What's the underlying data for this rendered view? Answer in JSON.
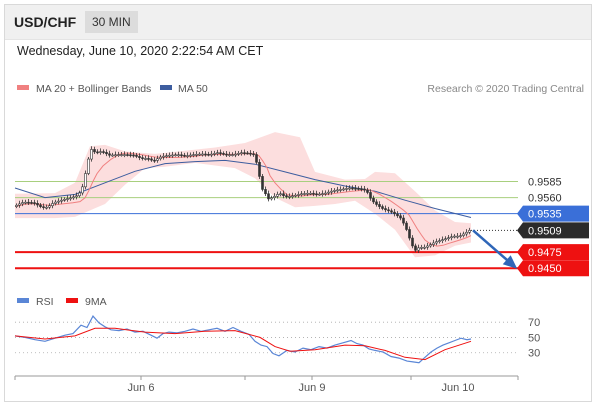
{
  "header": {
    "symbol": "USD/CHF",
    "timeframe": "30 MIN",
    "datetime": "Wednesday, June 10, 2020 2:22:54 AM CET"
  },
  "legend": {
    "ma20_label": "MA 20 + Bollinger Bands",
    "ma50_label": "MA 50",
    "credit": "Research © 2020 Trading Central",
    "rsi_label": "RSI",
    "rsi_ma_label": "9MA"
  },
  "colors": {
    "ma20": "#f08080",
    "bollinger_fill": "#fcdede",
    "ma50": "#3d5d9f",
    "green_level": "#a8cf7e",
    "blue_level": "#3a6fd8",
    "red_level": "#ee1111",
    "candle": "#333333",
    "rsi": "#5a86d6",
    "rsi_ma": "#ee1111",
    "arrow": "#2f66b8"
  },
  "chart_data": [
    {
      "type": "candlestick",
      "title": "USD/CHF 30 MIN",
      "x_ticks": [
        "Jun 6",
        "Jun 9",
        "Jun 10"
      ],
      "ylim": [
        0.9427,
        0.9712
      ],
      "levels": [
        {
          "value": 0.9585,
          "label": "0.9585",
          "style": "green"
        },
        {
          "value": 0.956,
          "label": "0.9560",
          "style": "green"
        },
        {
          "value": 0.9535,
          "label": "0.9535",
          "style": "blue"
        },
        {
          "value": 0.9509,
          "label": "0.9509",
          "style": "current"
        },
        {
          "value": 0.9475,
          "label": "0.9475",
          "style": "red"
        },
        {
          "value": 0.945,
          "label": "0.9450",
          "style": "red"
        }
      ],
      "price_path": [
        [
          0,
          0.9546
        ],
        [
          10,
          0.9553
        ],
        [
          20,
          0.9552
        ],
        [
          28,
          0.9545
        ],
        [
          34,
          0.9545
        ],
        [
          40,
          0.9552
        ],
        [
          50,
          0.9557
        ],
        [
          58,
          0.956
        ],
        [
          65,
          0.9564
        ],
        [
          70,
          0.958
        ],
        [
          74,
          0.9615
        ],
        [
          78,
          0.9635
        ],
        [
          82,
          0.963
        ],
        [
          88,
          0.9632
        ],
        [
          96,
          0.9626
        ],
        [
          104,
          0.9627
        ],
        [
          112,
          0.9627
        ],
        [
          120,
          0.9626
        ],
        [
          128,
          0.9621
        ],
        [
          134,
          0.9621
        ],
        [
          140,
          0.9617
        ],
        [
          148,
          0.9624
        ],
        [
          156,
          0.9626
        ],
        [
          164,
          0.9627
        ],
        [
          172,
          0.9625
        ],
        [
          180,
          0.9627
        ],
        [
          188,
          0.9628
        ],
        [
          196,
          0.9627
        ],
        [
          204,
          0.963
        ],
        [
          212,
          0.9627
        ],
        [
          220,
          0.9627
        ],
        [
          228,
          0.963
        ],
        [
          235,
          0.9629
        ],
        [
          240,
          0.9627
        ],
        [
          244,
          0.9611
        ],
        [
          248,
          0.9575
        ],
        [
          252,
          0.9566
        ],
        [
          255,
          0.9558
        ],
        [
          260,
          0.9561
        ],
        [
          266,
          0.9567
        ],
        [
          272,
          0.9561
        ],
        [
          280,
          0.9563
        ],
        [
          288,
          0.9566
        ],
        [
          296,
          0.9567
        ],
        [
          304,
          0.9565
        ],
        [
          312,
          0.9567
        ],
        [
          320,
          0.9571
        ],
        [
          328,
          0.9573
        ],
        [
          336,
          0.9575
        ],
        [
          344,
          0.9574
        ],
        [
          350,
          0.9573
        ],
        [
          354,
          0.9568
        ],
        [
          358,
          0.9556
        ],
        [
          364,
          0.9548
        ],
        [
          370,
          0.9542
        ],
        [
          376,
          0.9539
        ],
        [
          382,
          0.9534
        ],
        [
          388,
          0.9527
        ],
        [
          394,
          0.9507
        ],
        [
          398,
          0.9487
        ],
        [
          402,
          0.9478
        ],
        [
          406,
          0.9483
        ],
        [
          410,
          0.9482
        ],
        [
          416,
          0.9486
        ],
        [
          422,
          0.9491
        ],
        [
          428,
          0.9494
        ],
        [
          434,
          0.9497
        ],
        [
          440,
          0.95
        ],
        [
          446,
          0.95
        ],
        [
          452,
          0.9505
        ],
        [
          456,
          0.9509
        ]
      ],
      "ma50_path": [
        [
          0,
          0.9575
        ],
        [
          30,
          0.956
        ],
        [
          60,
          0.9565
        ],
        [
          90,
          0.9583
        ],
        [
          120,
          0.9601
        ],
        [
          150,
          0.9613
        ],
        [
          180,
          0.9616
        ],
        [
          210,
          0.9618
        ],
        [
          240,
          0.9612
        ],
        [
          270,
          0.96
        ],
        [
          300,
          0.9588
        ],
        [
          330,
          0.9578
        ],
        [
          360,
          0.957
        ],
        [
          390,
          0.9556
        ],
        [
          420,
          0.9543
        ],
        [
          456,
          0.9529
        ]
      ],
      "bollinger": {
        "upper": [
          [
            0,
            0.9566
          ],
          [
            40,
            0.9567
          ],
          [
            60,
            0.9583
          ],
          [
            75,
            0.964
          ],
          [
            90,
            0.9642
          ],
          [
            110,
            0.9632
          ],
          [
            140,
            0.9628
          ],
          [
            170,
            0.9633
          ],
          [
            200,
            0.9638
          ],
          [
            230,
            0.9645
          ],
          [
            260,
            0.9662
          ],
          [
            285,
            0.9654
          ],
          [
            300,
            0.96
          ],
          [
            330,
            0.9588
          ],
          [
            350,
            0.9589
          ],
          [
            360,
            0.96
          ],
          [
            380,
            0.9598
          ],
          [
            400,
            0.957
          ],
          [
            420,
            0.954
          ],
          [
            440,
            0.9522
          ],
          [
            456,
            0.952
          ]
        ],
        "lower": [
          [
            456,
            0.949
          ],
          [
            440,
            0.9485
          ],
          [
            420,
            0.947
          ],
          [
            400,
            0.9467
          ],
          [
            380,
            0.951
          ],
          [
            360,
            0.9535
          ],
          [
            340,
            0.9555
          ],
          [
            320,
            0.955
          ],
          [
            300,
            0.9547
          ],
          [
            280,
            0.9545
          ],
          [
            260,
            0.956
          ],
          [
            240,
            0.959
          ],
          [
            220,
            0.9606
          ],
          [
            200,
            0.961
          ],
          [
            180,
            0.9614
          ],
          [
            150,
            0.9608
          ],
          [
            130,
            0.9606
          ],
          [
            110,
            0.958
          ],
          [
            90,
            0.955
          ],
          [
            75,
            0.954
          ],
          [
            60,
            0.953
          ],
          [
            40,
            0.9528
          ],
          [
            0,
            0.9528
          ]
        ]
      },
      "forecast_arrow": {
        "from": [
          458,
          0.9509
        ],
        "to": [
          500,
          0.9452
        ]
      }
    },
    {
      "type": "line",
      "title": "RSI",
      "ylim": [
        10,
        82
      ],
      "y_ticks": [
        70,
        50,
        30
      ],
      "series": [
        {
          "name": "RSI",
          "values": [
            [
              0,
              52
            ],
            [
              10,
              50
            ],
            [
              20,
              47
            ],
            [
              30,
              45
            ],
            [
              40,
              49
            ],
            [
              50,
              53
            ],
            [
              58,
              55
            ],
            [
              66,
              66
            ],
            [
              72,
              63
            ],
            [
              78,
              78
            ],
            [
              84,
              69
            ],
            [
              90,
              64
            ],
            [
              96,
              60
            ],
            [
              104,
              59
            ],
            [
              112,
              61
            ],
            [
              120,
              57
            ],
            [
              128,
              58
            ],
            [
              136,
              53
            ],
            [
              142,
              49
            ],
            [
              148,
              55
            ],
            [
              154,
              57
            ],
            [
              162,
              56
            ],
            [
              170,
              58
            ],
            [
              178,
              61
            ],
            [
              186,
              58
            ],
            [
              194,
              60
            ],
            [
              202,
              62
            ],
            [
              210,
              58
            ],
            [
              218,
              63
            ],
            [
              226,
              58
            ],
            [
              234,
              54
            ],
            [
              240,
              45
            ],
            [
              246,
              40
            ],
            [
              252,
              38
            ],
            [
              258,
              29
            ],
            [
              264,
              26
            ],
            [
              272,
              33
            ],
            [
              280,
              31
            ],
            [
              288,
              36
            ],
            [
              296,
              34
            ],
            [
              304,
              38
            ],
            [
              312,
              36
            ],
            [
              320,
              40
            ],
            [
              328,
              43
            ],
            [
              336,
              46
            ],
            [
              342,
              42
            ],
            [
              348,
              40
            ],
            [
              354,
              35
            ],
            [
              360,
              33
            ],
            [
              368,
              31
            ],
            [
              376,
              25
            ],
            [
              384,
              23
            ],
            [
              392,
              19
            ],
            [
              398,
              18
            ],
            [
              404,
              17
            ],
            [
              410,
              24
            ],
            [
              416,
              31
            ],
            [
              422,
              36
            ],
            [
              428,
              40
            ],
            [
              434,
              43
            ],
            [
              440,
              46
            ],
            [
              446,
              49
            ],
            [
              452,
              47
            ],
            [
              456,
              48
            ]
          ]
        },
        {
          "name": "9MA",
          "values": [
            [
              0,
              52
            ],
            [
              30,
              48
            ],
            [
              60,
              52
            ],
            [
              80,
              62
            ],
            [
              100,
              62
            ],
            [
              130,
              57
            ],
            [
              160,
              55
            ],
            [
              190,
              58
            ],
            [
              220,
              59
            ],
            [
              245,
              50
            ],
            [
              260,
              38
            ],
            [
              275,
              32
            ],
            [
              300,
              34
            ],
            [
              330,
              40
            ],
            [
              350,
              39
            ],
            [
              370,
              33
            ],
            [
              390,
              24
            ],
            [
              410,
              21
            ],
            [
              430,
              34
            ],
            [
              456,
              45
            ]
          ]
        }
      ]
    }
  ]
}
